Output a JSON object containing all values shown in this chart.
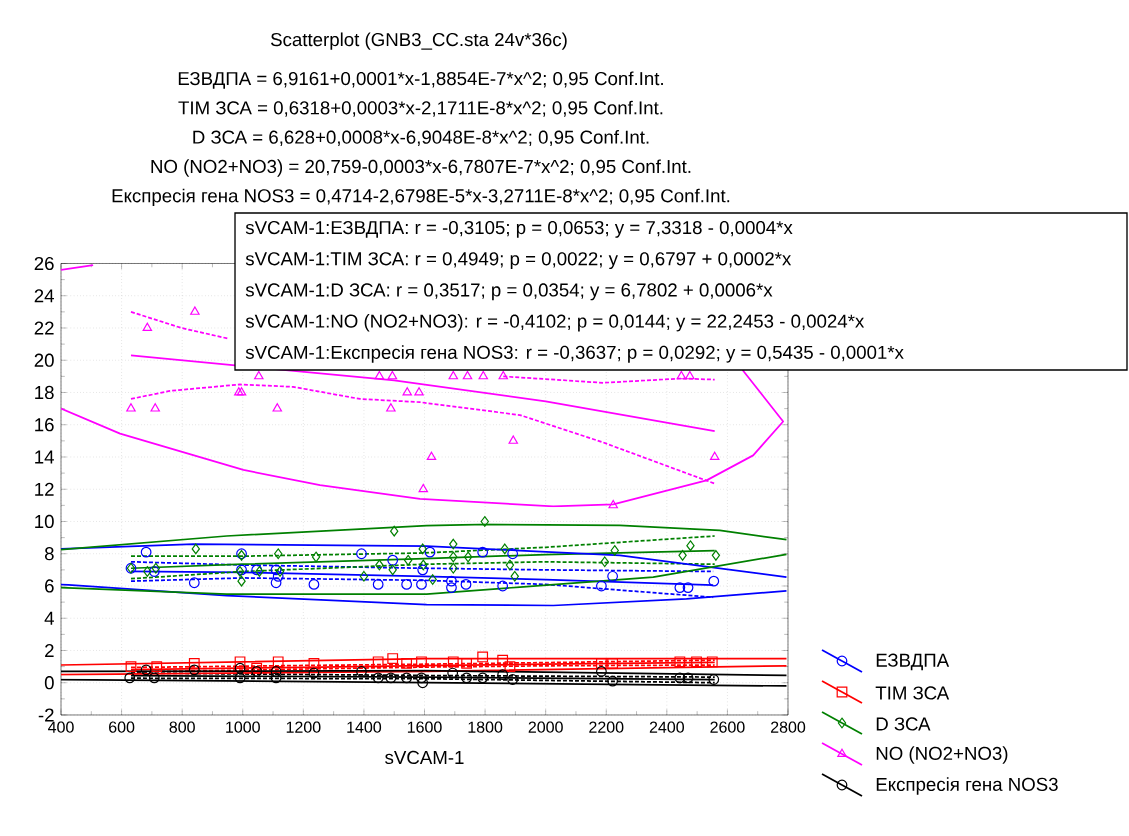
{
  "chart_data": {
    "type": "scatter",
    "title": "Scatterplot (GNB3_CC.sta 24v*36c)",
    "xlabel": "sVCAM-1",
    "annotations": [
      "ЕЗВДПА = 6,9161+0,0001*x-1,8854E-7*x^2; 0,95 Conf.Int.",
      "TIM ЗСА = 0,6318+0,0003*x-2,1711E-8*x^2; 0,95 Conf.Int.",
      "D ЗСА = 6,628+0,0008*x-6,9048E-8*x^2; 0,95 Conf.Int.",
      "NO (NO2+NO3) = 20,759-0,0003*x-6,7807E-7*x^2; 0,95 Conf.Int.",
      "Експресія гена NOS3 = 0,4714-2,6798E-5*x-3,2711E-8*x^2; 0,95 Conf.Int.",
      "sVCAM-1:ЕЗВДПА:   r = -0,3105; p = 0,0653;  y =  7,3318 - 0,0004*x",
      "sVCAM-1:TIM ЗСА:   r =  0,4949; p = 0,0022;  y =  0,6797 + 0,0002*x",
      "sVCAM-1:D ЗСА:   r =  0,3517; p = 0,0354;  y =  6,7802 + 0,0006*x",
      "sVCAM-1:NO (NO2+NO3):   r = -0,4102; p = 0,0144;  y = 22,2453 - 0,0024*x",
      "sVCAM-1:Експресія гена NOS3:   r = -0,3637; p = 0,0292;  y =  0,5435 - 0,0001*x"
    ],
    "xlim": [
      400,
      2800
    ],
    "ylim": [
      -2,
      26
    ],
    "xticks": [
      400,
      600,
      800,
      1000,
      1200,
      1400,
      1600,
      1800,
      2000,
      2200,
      2400,
      2600,
      2800
    ],
    "yticks": [
      -2,
      0,
      2,
      4,
      6,
      8,
      10,
      12,
      14,
      16,
      18,
      20,
      22,
      24,
      26
    ],
    "grid": true,
    "legend": "bottom right",
    "series": [
      {
        "name": "ЕЗВДПА",
        "color": "#0000ff",
        "marker": "circle",
        "x": [
          631,
          681,
          708,
          840,
          996,
          996,
          1046,
          1110,
          1117,
          1110,
          1235,
          1392,
          1447,
          1495,
          1541,
          1594,
          1590,
          1618,
          1689,
          1689,
          1737,
          1792,
          1858,
          1891,
          2184,
          2221,
          2443,
          2470,
          2555
        ],
        "values": [
          7.1,
          8.1,
          6.9,
          6.2,
          8.0,
          7.0,
          7.0,
          7.0,
          6.6,
          6.2,
          6.1,
          8.0,
          6.1,
          7.6,
          6.1,
          7.0,
          6.1,
          8.1,
          6.3,
          5.9,
          6.1,
          8.1,
          6.0,
          8.0,
          6.0,
          6.6,
          5.9,
          5.9,
          6.3
        ]
      },
      {
        "name": "TIM ЗСА",
        "color": "#ff0000",
        "marker": "square",
        "x": [
          631,
          716,
          840,
          991,
          1046,
          1117,
          1235,
          1447,
          1495,
          1541,
          1590,
          1695,
          1739,
          1792,
          1858,
          1882,
          2184,
          2221,
          2443,
          2498,
          2550
        ],
        "values": [
          1.0,
          1.0,
          1.2,
          1.3,
          0.9,
          1.3,
          1.2,
          1.3,
          1.5,
          1.2,
          1.3,
          1.3,
          1.2,
          1.6,
          1.4,
          1.0,
          1.2,
          1.2,
          1.3,
          1.3,
          1.3
        ]
      },
      {
        "name": "D ЗСА",
        "color": "#008000",
        "marker": "diamond",
        "x": [
          631,
          685,
          713,
          845,
          996,
          991,
          996,
          1055,
          1117,
          1123,
          1242,
          1400,
          1451,
          1495,
          1500,
          1546,
          1594,
          1596,
          1627,
          1695,
          1695,
          1695,
          1744,
          1799,
          1865,
          1882,
          1898,
          2195,
          2228,
          2452,
          2478,
          2562
        ],
        "values": [
          7.1,
          6.9,
          7.1,
          8.3,
          7.9,
          6.9,
          6.3,
          6.9,
          8.0,
          6.9,
          7.8,
          6.6,
          7.3,
          7.0,
          9.4,
          7.6,
          8.3,
          7.3,
          6.4,
          8.6,
          7.8,
          7.1,
          7.8,
          10.0,
          8.3,
          7.3,
          6.6,
          7.5,
          8.2,
          7.9,
          8.5,
          7.9
        ]
      },
      {
        "name": "NO (NO2+NO3)",
        "color": "#ff00ff",
        "marker": "triangle",
        "x": [
          631,
          685,
          711,
          842,
          987,
          996,
          1053,
          1114,
          1451,
          1489,
          1494,
          1543,
          1582,
          1596,
          1623,
          1695,
          1742,
          1794,
          1860,
          1893,
          2223,
          2448,
          2476,
          2558
        ],
        "values": [
          17,
          22,
          17,
          23,
          18,
          18,
          19,
          17,
          19,
          17,
          19,
          18,
          18,
          12,
          14,
          19,
          19,
          19,
          19,
          15,
          11,
          19,
          19,
          14
        ]
      },
      {
        "name": "Експресія гена NOS3",
        "color": "#000000",
        "marker": "circle",
        "x": [
          627,
          681,
          708,
          840,
          991,
          991,
          1046,
          1110,
          1110,
          1235,
          1392,
          1447,
          1489,
          1541,
          1590,
          1594,
          1693,
          1739,
          1792,
          1858,
          1891,
          2184,
          2221,
          2443,
          2470,
          2555
        ],
        "values": [
          0.3,
          0.8,
          0.3,
          0.8,
          0.9,
          0.3,
          0.7,
          0.7,
          0.3,
          0.6,
          0.7,
          0.3,
          0.3,
          0.3,
          0.3,
          0.0,
          0.6,
          0.3,
          0.3,
          0.5,
          0.2,
          0.7,
          0.1,
          0.3,
          0.3,
          0.2
        ]
      },
      {
        "color": "#0000ff",
        "type": "line",
        "line_style": "solid",
        "x": [
          631,
          1000,
          1600,
          2000,
          2553
        ],
        "values": [
          6.9,
          6.85,
          6.6,
          6.4,
          6.05
        ]
      },
      {
        "color": "#0000ff",
        "type": "line",
        "line_style": "dashed",
        "x": [
          631,
          1000,
          1600,
          2000,
          2553
        ],
        "values": [
          6.3,
          6.5,
          6.35,
          6.1,
          5.3
        ]
      },
      {
        "color": "#0000ff",
        "type": "line",
        "line_style": "dashed",
        "x": [
          631,
          1000,
          1600,
          2000,
          2553
        ],
        "values": [
          7.5,
          7.3,
          7.1,
          7.0,
          6.9
        ]
      },
      {
        "color": "#ff0000",
        "type": "line",
        "line_style": "solid",
        "x": [
          631,
          1200,
          1600,
          2000,
          2558
        ],
        "values": [
          0.81,
          0.96,
          1.06,
          1.15,
          1.26
        ]
      },
      {
        "color": "#ff0000",
        "type": "line",
        "line_style": "dashed",
        "x": [
          631,
          1200,
          1600,
          2000,
          2558
        ],
        "values": [
          0.67,
          0.85,
          0.97,
          1.05,
          1.1
        ]
      },
      {
        "color": "#ff0000",
        "type": "line",
        "line_style": "dashed",
        "x": [
          631,
          1200,
          1600,
          2000,
          2558
        ],
        "values": [
          0.95,
          1.07,
          1.15,
          1.25,
          1.4
        ]
      },
      {
        "color": "#008000",
        "type": "line",
        "line_style": "solid",
        "x": [
          631,
          1000,
          1600,
          2000,
          2558
        ],
        "values": [
          7.1,
          7.35,
          7.7,
          7.95,
          8.2
        ]
      },
      {
        "color": "#008000",
        "type": "line",
        "line_style": "dashed",
        "x": [
          631,
          1000,
          1600,
          2000,
          2558
        ],
        "values": [
          6.45,
          6.9,
          7.35,
          7.5,
          7.35
        ]
      },
      {
        "color": "#008000",
        "type": "line",
        "line_style": "dashed",
        "x": [
          631,
          1000,
          1600,
          2000,
          2558
        ],
        "values": [
          7.85,
          7.85,
          8.05,
          8.4,
          9.1
        ]
      },
      {
        "color": "#ff00ff",
        "type": "line",
        "line_style": "solid",
        "x": [
          631,
          1500,
          2000,
          2558
        ],
        "values": [
          20.3,
          18.75,
          17.45,
          15.6
        ]
      },
      {
        "color": "#ff00ff",
        "type": "line",
        "line_style": "dashed",
        "x": [
          631,
          798,
          950
        ],
        "values": [
          23.0,
          22.0,
          21.35
        ]
      },
      {
        "color": "#ff00ff",
        "type": "line",
        "line_style": "dashed",
        "x": [
          1860,
          2190,
          2448,
          2558
        ],
        "values": [
          19.0,
          18.6,
          18.87,
          18.8
        ]
      },
      {
        "color": "#ff00ff",
        "type": "line",
        "line_style": "dashed",
        "x": [
          631,
          760,
          991,
          1166,
          1387,
          1585,
          1915,
          2190,
          2558
        ],
        "values": [
          17.6,
          18.1,
          18.5,
          18.35,
          17.6,
          17.4,
          16.6,
          14.9,
          12.35
        ]
      },
      {
        "color": "#000000",
        "type": "line",
        "line_style": "solid",
        "x": [
          631,
          1600,
          2558
        ],
        "values": [
          0.44,
          0.35,
          0.19
        ]
      },
      {
        "color": "#000000",
        "type": "line",
        "line_style": "dashed",
        "x": [
          631,
          1600,
          2558
        ],
        "values": [
          0.28,
          0.25,
          0.0
        ]
      },
      {
        "color": "#000000",
        "type": "line",
        "line_style": "dashed",
        "x": [
          631,
          1600,
          2558
        ],
        "values": [
          0.6,
          0.45,
          0.35
        ]
      },
      {
        "color": "#0000ff",
        "type": "line",
        "line_style": "solid",
        "x": [
          400,
          947,
          1607,
          2025,
          2465,
          2795
        ],
        "values": [
          6.1,
          5.4,
          4.85,
          4.79,
          5.2,
          5.7
        ]
      },
      {
        "color": "#0000ff",
        "type": "line",
        "line_style": "solid",
        "x": [
          400,
          837,
          1607,
          1915,
          2245,
          2795
        ],
        "values": [
          8.3,
          8.6,
          8.47,
          8.2,
          7.9,
          6.55
        ]
      },
      {
        "color": "#008000",
        "type": "line",
        "line_style": "solid",
        "x": [
          400,
          947,
          1607,
          1915,
          2355,
          2795
        ],
        "values": [
          5.9,
          5.5,
          5.5,
          5.93,
          6.55,
          7.96
        ]
      },
      {
        "color": "#008000",
        "type": "line",
        "line_style": "solid",
        "x": [
          400,
          947,
          1607,
          1805,
          2245,
          2575,
          2795
        ],
        "values": [
          8.25,
          9.1,
          9.75,
          9.82,
          9.76,
          9.45,
          8.87
        ]
      },
      {
        "color": "#ff0000",
        "type": "line",
        "line_style": "solid",
        "x": [
          400,
          1607,
          2795
        ],
        "values": [
          0.5,
          0.7,
          1.05
        ]
      },
      {
        "color": "#ff0000",
        "type": "line",
        "line_style": "solid",
        "x": [
          400,
          1607,
          2795
        ],
        "values": [
          1.1,
          1.5,
          1.5
        ]
      },
      {
        "color": "#000000",
        "type": "line",
        "line_style": "solid",
        "x": [
          400,
          1607,
          2795
        ],
        "values": [
          0.2,
          0.0,
          -0.2
        ]
      },
      {
        "color": "#000000",
        "type": "line",
        "line_style": "solid",
        "x": [
          400,
          1607,
          2795
        ],
        "values": [
          0.7,
          0.75,
          0.45
        ]
      },
      {
        "color": "#ff00ff",
        "type": "line",
        "line_style": "solid",
        "x": [
          400,
          506
        ],
        "values": [
          25.6,
          25.9
        ]
      },
      {
        "color": "#ff00ff",
        "type": "line",
        "line_style": "solid",
        "x": [
          400,
          595,
          1002,
          1255,
          1585,
          2025,
          2223,
          2531,
          2685,
          2784,
          2650
        ],
        "values": [
          17.0,
          15.45,
          13.2,
          12.25,
          11.4,
          10.94,
          11.06,
          12.55,
          14.1,
          16.2,
          19.4
        ]
      }
    ]
  }
}
